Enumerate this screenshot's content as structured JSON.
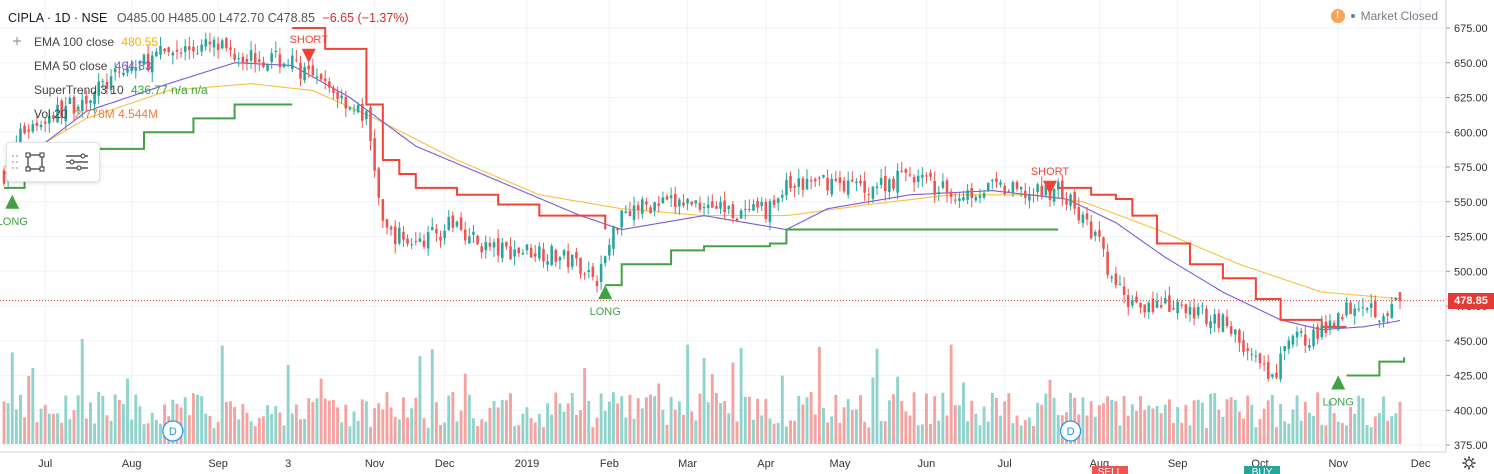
{
  "header": {
    "symbol": "CIPLA · 1D · NSE",
    "ohlc": "O485.00 H485.00 L472.70 C478.85",
    "change": "−6.65 (−1.37%)"
  },
  "market_status": "Market Closed",
  "indicators": [
    {
      "name": "EMA 100 close",
      "value": "480.55",
      "color": "#f2b100"
    },
    {
      "name": "EMA 50 close",
      "value": "464.83",
      "color": "#7b5bd6"
    },
    {
      "name": "SuperTrend 3 10",
      "value": "436.77 n/a n/a",
      "color": "#3aa63a"
    },
    {
      "name": "Vol 20",
      "value": "2.778M 4.544M",
      "color": "#f07a3c"
    }
  ],
  "last_price_label": "478.85",
  "colors": {
    "up": "#26a69a",
    "down": "#ef5350",
    "vol_up": "#8fd3cc",
    "vol_down": "#f4a3a1",
    "ema100": "#f5c242",
    "ema50": "#7b5bd6",
    "st_up": "#43a047",
    "st_down": "#f44336"
  },
  "chart_data": {
    "type": "candlestick",
    "y_axis_ticks": [
      "675.00",
      "650.00",
      "625.00",
      "600.00",
      "575.00",
      "550.00",
      "525.00",
      "500.00",
      "475.00",
      "450.00",
      "425.00",
      "400.00",
      "375.00"
    ],
    "ylim": [
      375,
      675
    ],
    "x_axis_labels": [
      {
        "label": "Jul",
        "idx": 10
      },
      {
        "label": "Aug",
        "idx": 31
      },
      {
        "label": "Sep",
        "idx": 52
      },
      {
        "label": "3",
        "idx": 69
      },
      {
        "label": "Nov",
        "idx": 90
      },
      {
        "label": "Dec",
        "idx": 107
      },
      {
        "label": "2019",
        "idx": 127
      },
      {
        "label": "Feb",
        "idx": 147
      },
      {
        "label": "Mar",
        "idx": 166
      },
      {
        "label": "Apr",
        "idx": 185
      },
      {
        "label": "May",
        "idx": 203
      },
      {
        "label": "Jun",
        "idx": 224
      },
      {
        "label": "Jul",
        "idx": 243
      },
      {
        "label": "Aug",
        "idx": 266
      },
      {
        "label": "Sep",
        "idx": 285
      },
      {
        "label": "Oct",
        "idx": 305
      },
      {
        "label": "Nov",
        "idx": 324
      },
      {
        "label": "Dec",
        "idx": 344
      }
    ],
    "n_bars": 340,
    "close_anchors": [
      [
        0,
        570
      ],
      [
        4,
        600
      ],
      [
        10,
        610
      ],
      [
        20,
        625
      ],
      [
        30,
        645
      ],
      [
        40,
        658
      ],
      [
        50,
        662
      ],
      [
        60,
        655
      ],
      [
        70,
        650
      ],
      [
        76,
        635
      ],
      [
        80,
        630
      ],
      [
        86,
        615
      ],
      [
        88,
        610
      ],
      [
        90,
        575
      ],
      [
        92,
        530
      ],
      [
        100,
        520
      ],
      [
        110,
        535
      ],
      [
        115,
        520
      ],
      [
        120,
        515
      ],
      [
        130,
        515
      ],
      [
        140,
        505
      ],
      [
        144,
        495
      ],
      [
        146,
        510
      ],
      [
        150,
        545
      ],
      [
        160,
        548
      ],
      [
        170,
        550
      ],
      [
        180,
        540
      ],
      [
        186,
        545
      ],
      [
        190,
        560
      ],
      [
        200,
        565
      ],
      [
        210,
        560
      ],
      [
        220,
        570
      ],
      [
        230,
        555
      ],
      [
        240,
        560
      ],
      [
        250,
        555
      ],
      [
        256,
        560
      ],
      [
        260,
        545
      ],
      [
        266,
        520
      ],
      [
        268,
        500
      ],
      [
        272,
        480
      ],
      [
        280,
        475
      ],
      [
        290,
        470
      ],
      [
        296,
        465
      ],
      [
        300,
        450
      ],
      [
        304,
        435
      ],
      [
        308,
        420
      ],
      [
        312,
        450
      ],
      [
        320,
        455
      ],
      [
        324,
        470
      ],
      [
        330,
        480
      ],
      [
        334,
        470
      ],
      [
        340,
        479
      ]
    ],
    "ema100_anchors": [
      [
        0,
        575
      ],
      [
        20,
        610
      ],
      [
        40,
        630
      ],
      [
        60,
        635
      ],
      [
        75,
        630
      ],
      [
        90,
        610
      ],
      [
        110,
        580
      ],
      [
        130,
        555
      ],
      [
        150,
        545
      ],
      [
        170,
        540
      ],
      [
        190,
        540
      ],
      [
        210,
        548
      ],
      [
        230,
        555
      ],
      [
        250,
        555
      ],
      [
        262,
        550
      ],
      [
        280,
        530
      ],
      [
        300,
        505
      ],
      [
        320,
        485
      ],
      [
        340,
        480
      ]
    ],
    "ema50_anchors": [
      [
        0,
        570
      ],
      [
        20,
        615
      ],
      [
        40,
        635
      ],
      [
        56,
        650
      ],
      [
        70,
        648
      ],
      [
        84,
        625
      ],
      [
        100,
        590
      ],
      [
        120,
        565
      ],
      [
        140,
        540
      ],
      [
        150,
        530
      ],
      [
        170,
        540
      ],
      [
        190,
        530
      ],
      [
        200,
        545
      ],
      [
        220,
        555
      ],
      [
        240,
        558
      ],
      [
        258,
        552
      ],
      [
        270,
        535
      ],
      [
        282,
        510
      ],
      [
        296,
        485
      ],
      [
        310,
        465
      ],
      [
        320,
        458
      ],
      [
        330,
        460
      ],
      [
        340,
        465
      ]
    ],
    "supertrend": [
      {
        "dir": "up",
        "points": [
          [
            0,
            560
          ],
          [
            3,
            560
          ],
          [
            5,
            572
          ],
          [
            12,
            580
          ],
          [
            22,
            588
          ],
          [
            34,
            600
          ],
          [
            46,
            610
          ],
          [
            56,
            620
          ],
          [
            66,
            620
          ],
          [
            70,
            620
          ]
        ]
      },
      {
        "dir": "down",
        "points": [
          [
            70,
            675
          ],
          [
            76,
            675
          ],
          [
            78,
            660
          ],
          [
            84,
            660
          ],
          [
            88,
            620
          ],
          [
            92,
            580
          ],
          [
            96,
            570
          ],
          [
            100,
            560
          ],
          [
            110,
            555
          ],
          [
            120,
            548
          ],
          [
            130,
            540
          ],
          [
            146,
            530
          ]
        ]
      },
      {
        "dir": "up",
        "points": [
          [
            146,
            490
          ],
          [
            150,
            505
          ],
          [
            156,
            505
          ],
          [
            162,
            515
          ],
          [
            170,
            518
          ],
          [
            180,
            518
          ],
          [
            186,
            520
          ],
          [
            190,
            530
          ],
          [
            200,
            530
          ],
          [
            230,
            530
          ],
          [
            244,
            530
          ],
          [
            256,
            530
          ]
        ]
      },
      {
        "dir": "down",
        "points": [
          [
            256,
            560
          ],
          [
            260,
            560
          ],
          [
            264,
            555
          ],
          [
            270,
            552
          ],
          [
            274,
            540
          ],
          [
            280,
            520
          ],
          [
            288,
            505
          ],
          [
            296,
            495
          ],
          [
            304,
            480
          ],
          [
            310,
            465
          ],
          [
            320,
            460
          ],
          [
            326,
            460
          ]
        ]
      },
      {
        "dir": "up",
        "points": [
          [
            326,
            425
          ],
          [
            330,
            425
          ],
          [
            334,
            435
          ],
          [
            338,
            435
          ],
          [
            340,
            438
          ]
        ]
      }
    ],
    "signals": [
      {
        "label": "LONG",
        "idx": 2,
        "price": 555,
        "type": "long"
      },
      {
        "label": "SHORT",
        "idx": 74,
        "price": 650,
        "type": "short"
      },
      {
        "label": "LONG",
        "idx": 146,
        "price": 490,
        "type": "long"
      },
      {
        "label": "SHORT",
        "idx": 254,
        "price": 555,
        "type": "short"
      },
      {
        "label": "LONG",
        "idx": 324,
        "price": 425,
        "type": "long"
      }
    ],
    "dividend_markers": [
      {
        "label": "D",
        "idx": 41
      },
      {
        "label": "D",
        "idx": 259
      }
    ],
    "bottom_partial_labels": [
      "SELL",
      "BUY"
    ]
  }
}
